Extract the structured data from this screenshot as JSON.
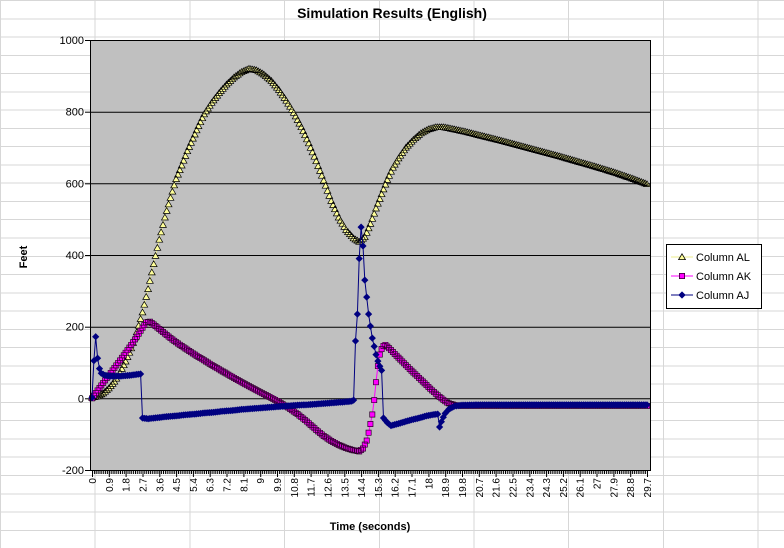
{
  "colors": {
    "plot_background": "#C0C0C0",
    "plot_gridlines": "#000000",
    "axis_line": "#000000",
    "sheet_gridlines": "#D7D7D7",
    "text": "#000000"
  },
  "chart_data": {
    "type": "line",
    "title": "Simulation Results (English)",
    "xlabel": "Time (seconds)",
    "ylabel": "Feet",
    "xlim": [
      0,
      29.8
    ],
    "ylim": [
      -200,
      1000
    ],
    "grid": "horizontal-only",
    "legend_position": "right",
    "y_ticks": [
      -200,
      0,
      200,
      400,
      600,
      800,
      1000
    ],
    "y_tick_labels": [
      "-200",
      "0",
      "200",
      "400",
      "600",
      "800",
      "1000"
    ],
    "x_label_step": 0.9,
    "x_minor_tick_step": 0.1,
    "marker_step": 0.1,
    "x_tick_labels": [
      "0",
      "0.9",
      "1.8",
      "2.7",
      "3.6",
      "4.5",
      "5.4",
      "6.3",
      "7.2",
      "8.1",
      "9",
      "9.9",
      "10.8",
      "11.7",
      "12.6",
      "13.5",
      "14.4",
      "15.3",
      "16.2",
      "17.1",
      "18",
      "18.9",
      "19.8",
      "20.7",
      "21.6",
      "22.5",
      "23.4",
      "24.3",
      "25.2",
      "26.1",
      "27",
      "27.9",
      "28.8",
      "29.7"
    ],
    "series": [
      {
        "name": "Column AL",
        "marker": "triangle",
        "marker_fill": "#FFFF99",
        "marker_stroke": "#000000",
        "line_color": "#ECEC8E",
        "points": [
          [
            0,
            2
          ],
          [
            0.3,
            6
          ],
          [
            0.6,
            14
          ],
          [
            0.9,
            28
          ],
          [
            1.2,
            47
          ],
          [
            1.5,
            72
          ],
          [
            1.8,
            103
          ],
          [
            2.1,
            140
          ],
          [
            2.4,
            185
          ],
          [
            2.7,
            240
          ],
          [
            3,
            305
          ],
          [
            3.3,
            375
          ],
          [
            3.6,
            443
          ],
          [
            3.9,
            505
          ],
          [
            4.2,
            560
          ],
          [
            4.5,
            612
          ],
          [
            4.8,
            650
          ],
          [
            5.1,
            690
          ],
          [
            5.4,
            725
          ],
          [
            5.7,
            760
          ],
          [
            6,
            793
          ],
          [
            6.4,
            825
          ],
          [
            6.8,
            852
          ],
          [
            7.2,
            876
          ],
          [
            7.6,
            896
          ],
          [
            8,
            911
          ],
          [
            8.4,
            920
          ],
          [
            8.8,
            916
          ],
          [
            9.2,
            904
          ],
          [
            9.6,
            886
          ],
          [
            10,
            861
          ],
          [
            10.4,
            831
          ],
          [
            10.8,
            797
          ],
          [
            11.2,
            757
          ],
          [
            11.6,
            712
          ],
          [
            12,
            662
          ],
          [
            12.4,
            608
          ],
          [
            12.8,
            551
          ],
          [
            13.2,
            505
          ],
          [
            13.6,
            470
          ],
          [
            14,
            447
          ],
          [
            14.3,
            437
          ],
          [
            14.6,
            450
          ],
          [
            14.9,
            487
          ],
          [
            15.2,
            530
          ],
          [
            15.5,
            570
          ],
          [
            15.8,
            610
          ],
          [
            16.1,
            644
          ],
          [
            16.4,
            670
          ],
          [
            16.8,
            700
          ],
          [
            17.2,
            722
          ],
          [
            17.6,
            740
          ],
          [
            18,
            751
          ],
          [
            18.4,
            757
          ],
          [
            18.8,
            757
          ],
          [
            19.2,
            753
          ],
          [
            20,
            744
          ],
          [
            21,
            731
          ],
          [
            22,
            718
          ],
          [
            23,
            704
          ],
          [
            24,
            690
          ],
          [
            25,
            676
          ],
          [
            26,
            661
          ],
          [
            27,
            646
          ],
          [
            28,
            630
          ],
          [
            29,
            612
          ],
          [
            29.7,
            598
          ]
        ]
      },
      {
        "name": "Column AK",
        "marker": "square",
        "marker_fill": "#FF00FF",
        "marker_stroke": "#30002E",
        "line_color": "#FF00FF",
        "points": [
          [
            0,
            0
          ],
          [
            0.3,
            22
          ],
          [
            0.6,
            43
          ],
          [
            0.9,
            64
          ],
          [
            1.2,
            85
          ],
          [
            1.5,
            106
          ],
          [
            1.8,
            127
          ],
          [
            2.1,
            149
          ],
          [
            2.4,
            172
          ],
          [
            2.7,
            197
          ],
          [
            2.9,
            212
          ],
          [
            3.1,
            214
          ],
          [
            3.4,
            202
          ],
          [
            3.8,
            185
          ],
          [
            4.2,
            168
          ],
          [
            4.6,
            153
          ],
          [
            5,
            139
          ],
          [
            5.5,
            122
          ],
          [
            6,
            106
          ],
          [
            6.5,
            90
          ],
          [
            7,
            75
          ],
          [
            7.5,
            60
          ],
          [
            8,
            45
          ],
          [
            8.5,
            31
          ],
          [
            9,
            17
          ],
          [
            9.5,
            4
          ],
          [
            10,
            -10
          ],
          [
            10.5,
            -26
          ],
          [
            11,
            -44
          ],
          [
            11.5,
            -65
          ],
          [
            12,
            -88
          ],
          [
            12.4,
            -105
          ],
          [
            12.8,
            -119
          ],
          [
            13.2,
            -130
          ],
          [
            13.6,
            -139
          ],
          [
            14,
            -145
          ],
          [
            14.3,
            -148
          ],
          [
            14.5,
            -140
          ],
          [
            14.7,
            -118
          ],
          [
            14.85,
            -85
          ],
          [
            15,
            -45
          ],
          [
            15.1,
            -5
          ],
          [
            15.2,
            45
          ],
          [
            15.3,
            90
          ],
          [
            15.4,
            122
          ],
          [
            15.55,
            145
          ],
          [
            15.7,
            149
          ],
          [
            15.9,
            140
          ],
          [
            16.2,
            124
          ],
          [
            16.6,
            103
          ],
          [
            17,
            82
          ],
          [
            17.4,
            62
          ],
          [
            17.8,
            42
          ],
          [
            18.2,
            22
          ],
          [
            18.6,
            4
          ],
          [
            19,
            -12
          ],
          [
            19.4,
            -19
          ],
          [
            19.8,
            -21
          ],
          [
            21,
            -21
          ],
          [
            23,
            -21
          ],
          [
            25,
            -21
          ],
          [
            27,
            -21
          ],
          [
            29.7,
            -21
          ]
        ]
      },
      {
        "name": "Column AJ",
        "marker": "diamond",
        "marker_fill": "#000080",
        "marker_stroke": "#000080",
        "line_color": "#000080",
        "points": [
          [
            0,
            2
          ],
          [
            0.05,
            45
          ],
          [
            0.1,
            105
          ],
          [
            0.15,
            145
          ],
          [
            0.2,
            172
          ],
          [
            0.25,
            150
          ],
          [
            0.3,
            112
          ],
          [
            0.4,
            83
          ],
          [
            0.5,
            70
          ],
          [
            0.7,
            64
          ],
          [
            1,
            62
          ],
          [
            1.5,
            62
          ],
          [
            2,
            64
          ],
          [
            2.3,
            66
          ],
          [
            2.6,
            68
          ],
          [
            2.7,
            -55
          ],
          [
            3,
            -57
          ],
          [
            3.5,
            -54
          ],
          [
            4,
            -51
          ],
          [
            4.5,
            -49
          ],
          [
            5,
            -46
          ],
          [
            5.5,
            -44
          ],
          [
            6,
            -41
          ],
          [
            6.5,
            -39
          ],
          [
            7,
            -36
          ],
          [
            7.5,
            -34
          ],
          [
            8,
            -31
          ],
          [
            8.5,
            -29
          ],
          [
            9,
            -27
          ],
          [
            9.5,
            -25
          ],
          [
            10,
            -23
          ],
          [
            10.5,
            -21
          ],
          [
            11,
            -19
          ],
          [
            11.5,
            -18
          ],
          [
            12,
            -16
          ],
          [
            12.5,
            -14
          ],
          [
            13,
            -12
          ],
          [
            13.5,
            -10
          ],
          [
            13.9,
            -8
          ],
          [
            14,
            -5
          ],
          [
            14.1,
            160
          ],
          [
            14.2,
            235
          ],
          [
            14.3,
            390
          ],
          [
            14.4,
            478
          ],
          [
            14.5,
            425
          ],
          [
            14.6,
            330
          ],
          [
            14.8,
            235
          ],
          [
            15,
            168
          ],
          [
            15.2,
            122
          ],
          [
            15.35,
            95
          ],
          [
            15.5,
            78
          ],
          [
            15.6,
            -55
          ],
          [
            15.8,
            -68
          ],
          [
            16,
            -76
          ],
          [
            16.3,
            -72
          ],
          [
            16.7,
            -66
          ],
          [
            17.1,
            -60
          ],
          [
            17.5,
            -55
          ],
          [
            17.9,
            -49
          ],
          [
            18.3,
            -45
          ],
          [
            18.5,
            -44
          ],
          [
            18.6,
            -80
          ],
          [
            18.75,
            -58
          ],
          [
            18.9,
            -42
          ],
          [
            19.1,
            -30
          ],
          [
            19.4,
            -22
          ],
          [
            19.8,
            -19
          ],
          [
            21,
            -18
          ],
          [
            23,
            -18
          ],
          [
            25,
            -18
          ],
          [
            27,
            -18
          ],
          [
            29.7,
            -18
          ]
        ]
      }
    ]
  }
}
